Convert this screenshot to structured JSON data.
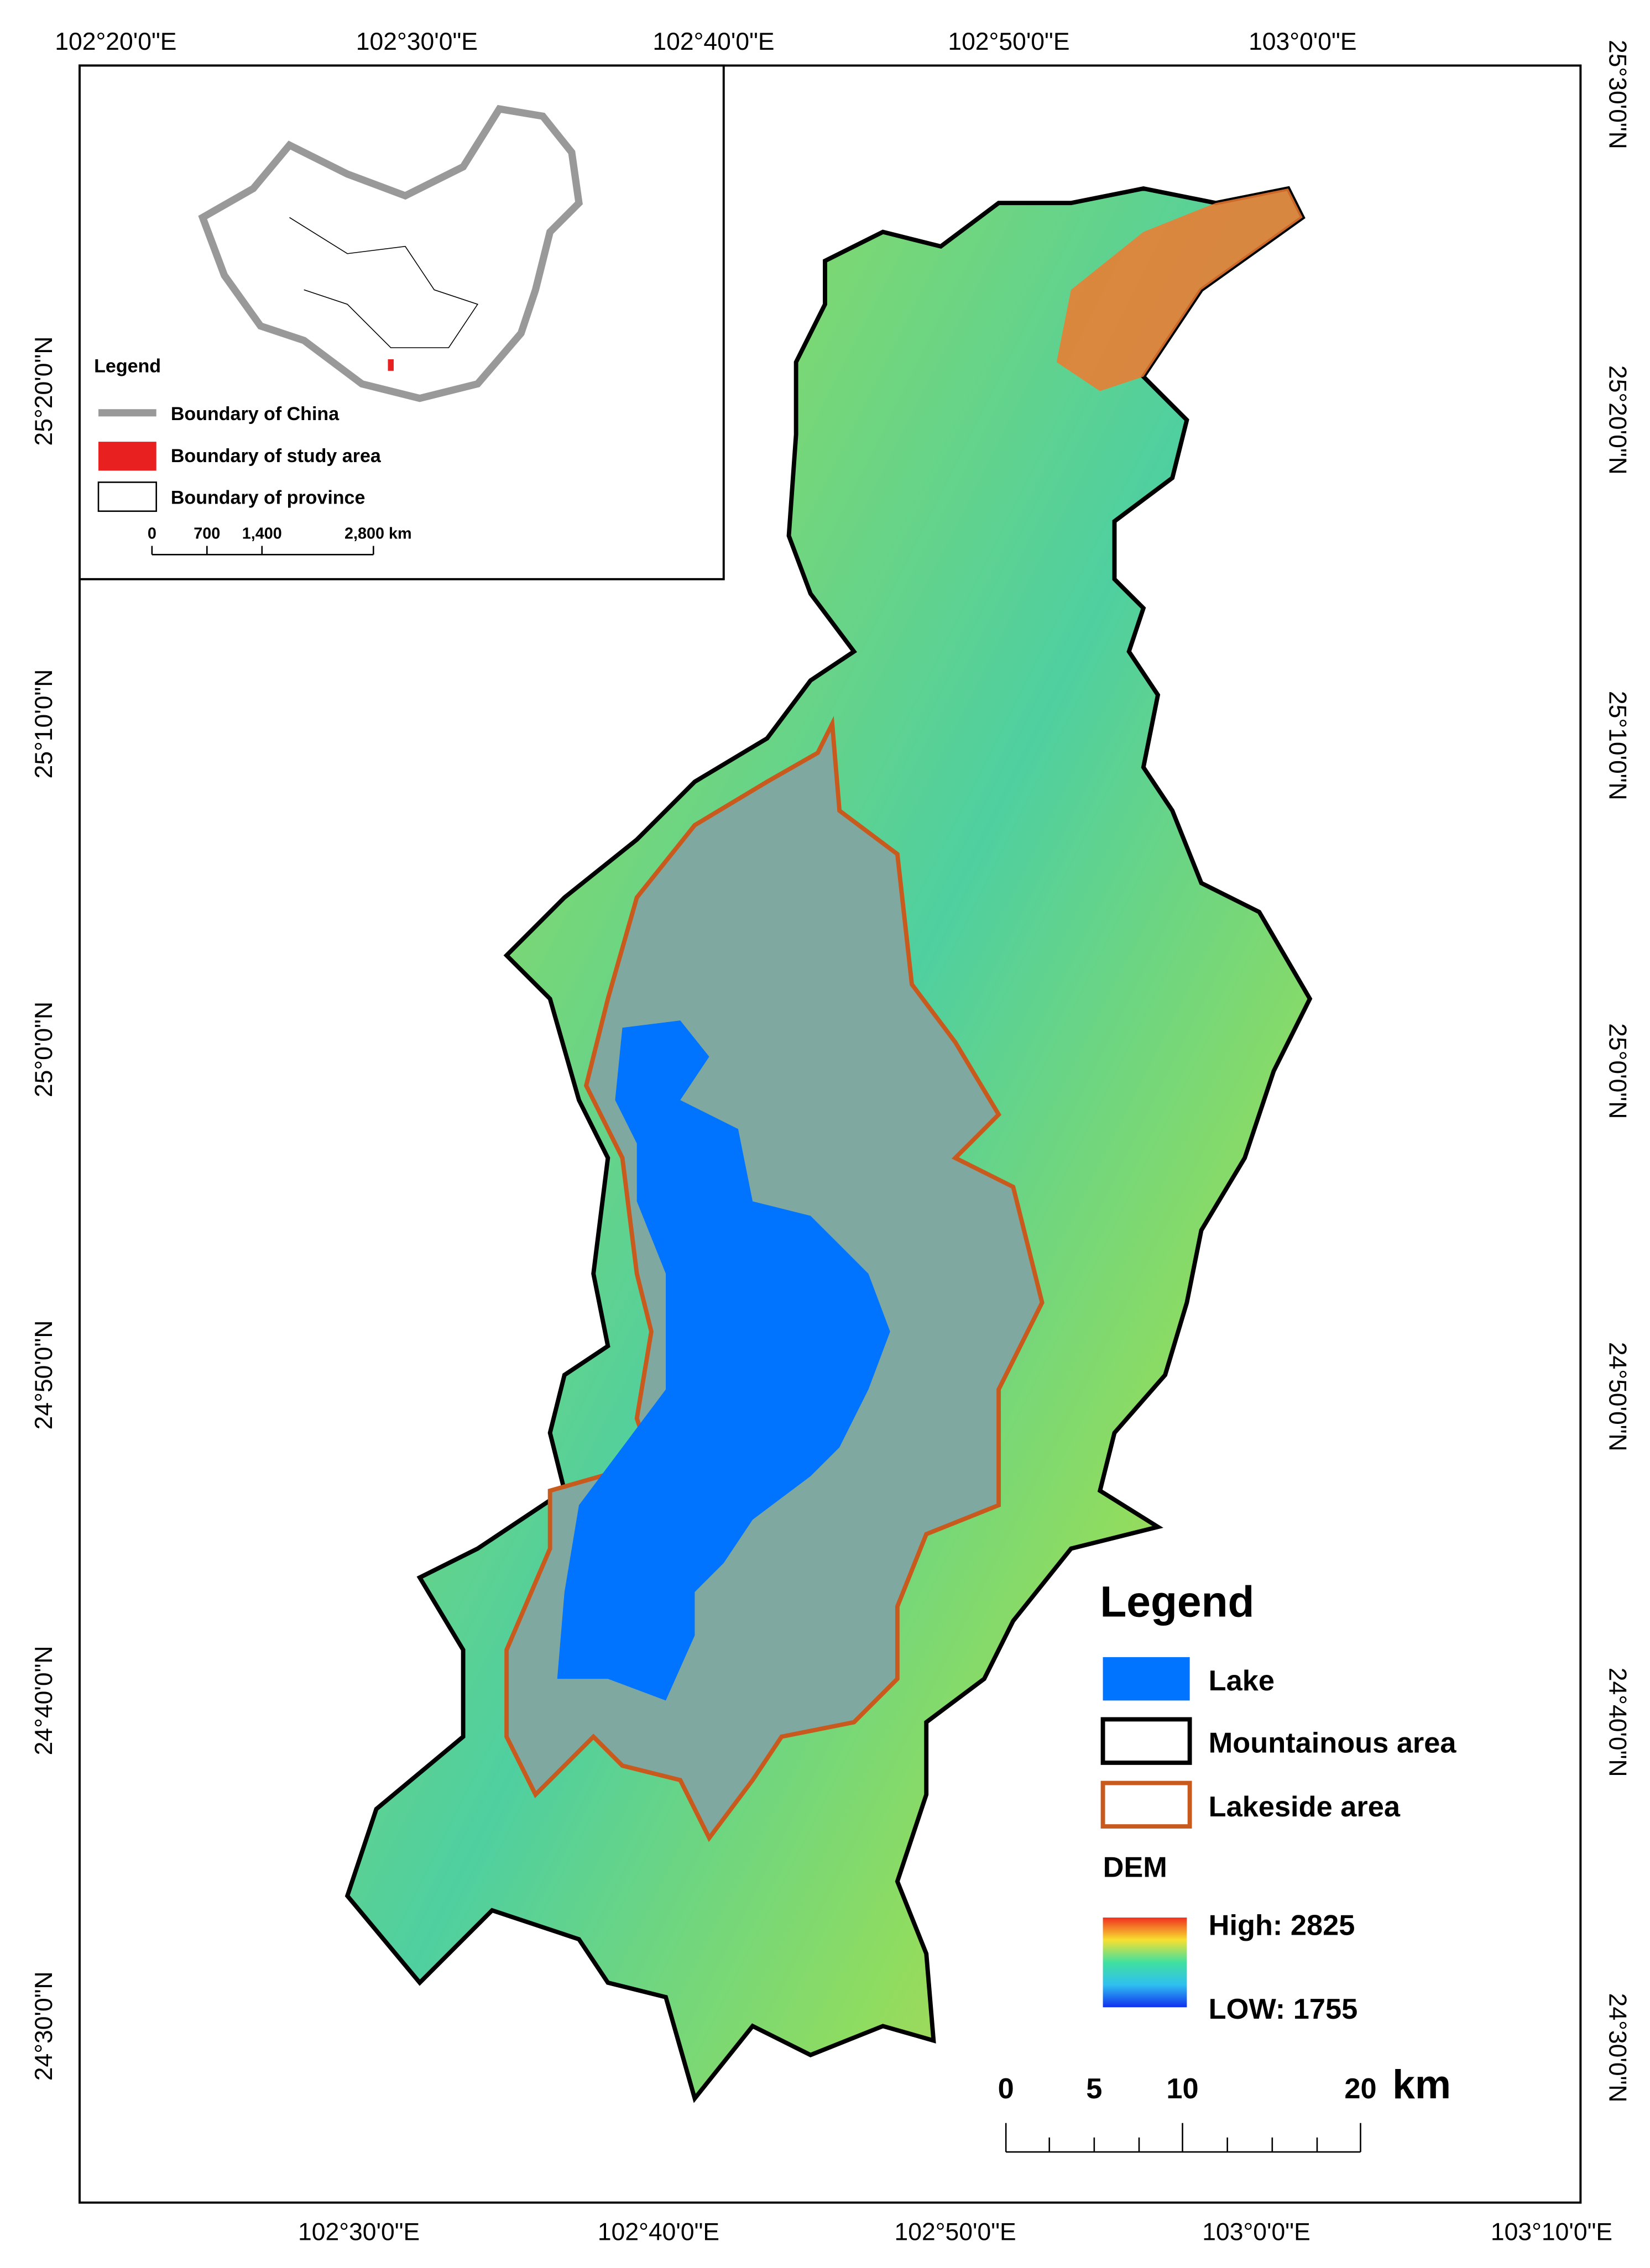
{
  "top_labels": [
    "102°20'0\"E",
    "102°30'0\"E",
    "102°40'0\"E",
    "102°50'0\"E",
    "103°0'0\"E"
  ],
  "bottom_labels": [
    "102°30'0\"E",
    "102°40'0\"E",
    "102°50'0\"E",
    "103°0'0\"E",
    "103°10'0\"E"
  ],
  "left_labels": [
    "25°20'0\"N",
    "25°10'0\"N",
    "25°0'0\"N",
    "24°50'0\"N",
    "24°40'0\"N",
    "24°30'0\"N"
  ],
  "right_labels": [
    "25°30'0\"N",
    "25°20'0\"N",
    "25°10'0\"N",
    "25°0'0\"N",
    "24°50'0\"N",
    "24°40'0\"N",
    "24°30'0\"N"
  ],
  "inset": {
    "legend_title": "Legend",
    "items": [
      "Boundary of China",
      "Boundary of study area",
      "Boundary of province"
    ],
    "scale_labels": [
      "0",
      "700",
      "1,400",
      "2,800 km"
    ]
  },
  "legend": {
    "title": "Legend",
    "items": [
      "Lake",
      "Mountainous area",
      "Lakeside area"
    ],
    "dem_title": "DEM",
    "high": "High: 2825",
    "low": "LOW: 1755"
  },
  "scale": {
    "labels": [
      "0",
      "5",
      "10",
      "20"
    ],
    "unit": "km"
  }
}
